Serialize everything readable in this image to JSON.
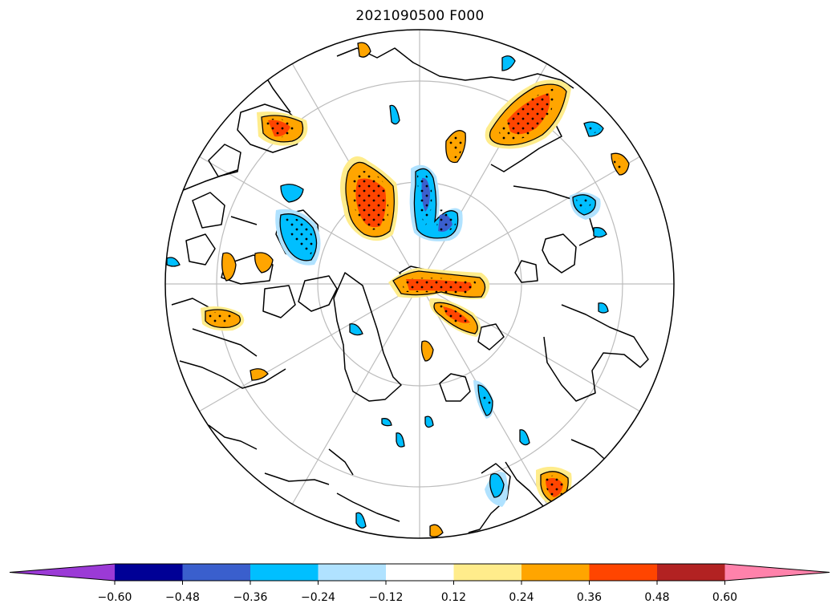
{
  "title": "2021090500 F000",
  "colorbar": {
    "ticks": [
      "−0.60",
      "−0.48",
      "−0.36",
      "−0.24",
      "−0.12",
      "0.12",
      "0.24",
      "0.36",
      "0.48",
      "0.60"
    ],
    "colors": [
      "#9b3ad6",
      "#000096",
      "#3a5fcd",
      "#00bfff",
      "#b0e2ff",
      "#ffffff",
      "#ffec8b",
      "#ffa500",
      "#ff4500",
      "#b22222",
      "#ff82ab"
    ],
    "extend": "both"
  },
  "map": {
    "projection": "north-polar-stereographic",
    "graticule": true,
    "coastlines": true,
    "stippling": "significant regions"
  }
}
